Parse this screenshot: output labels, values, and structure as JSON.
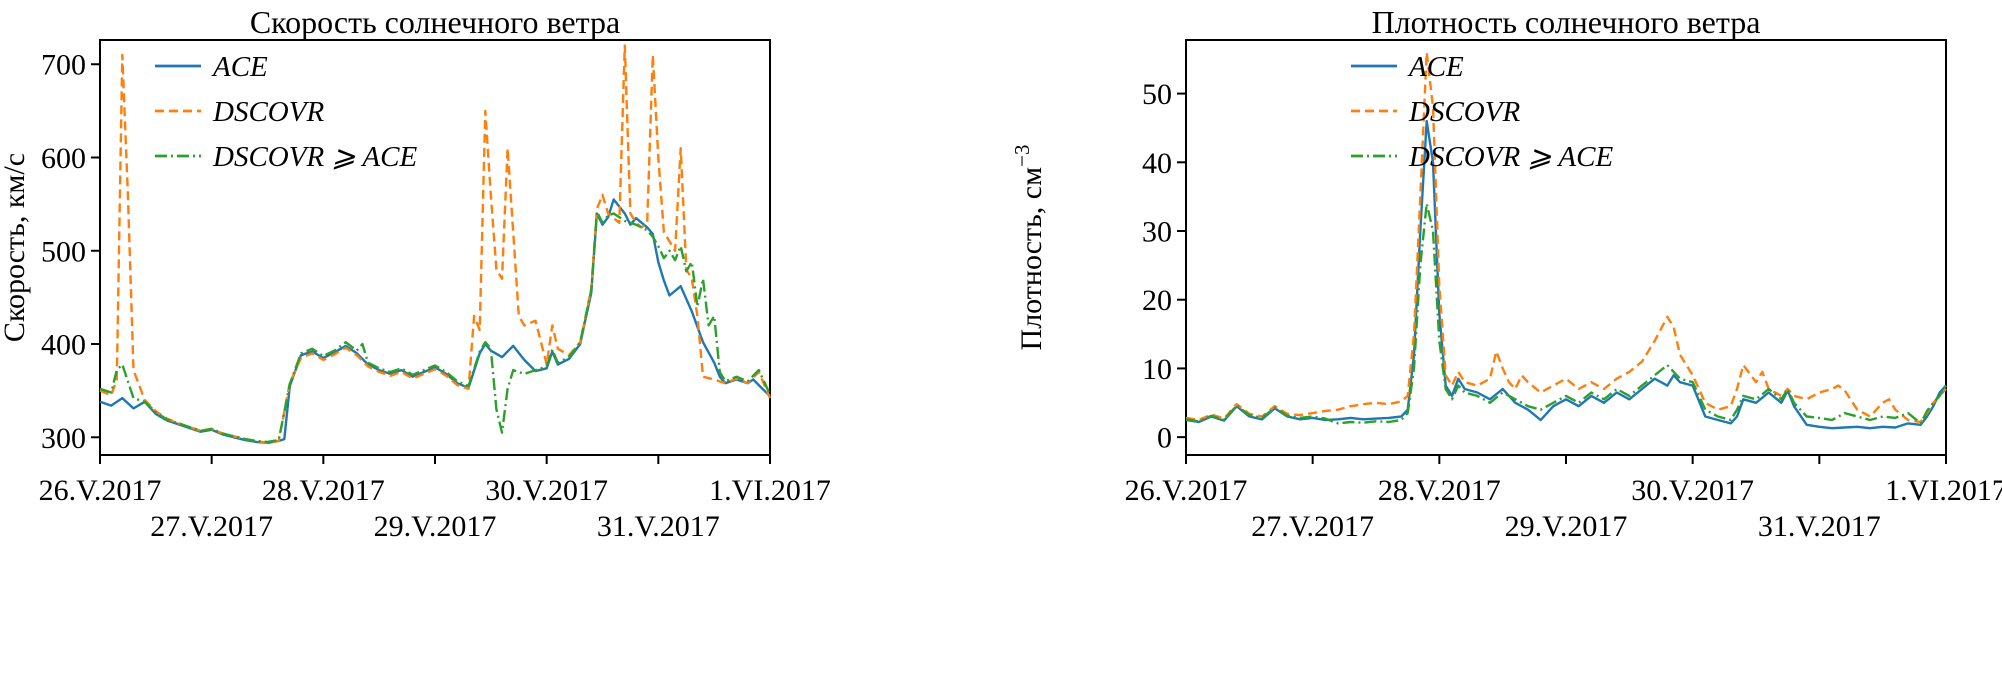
{
  "figure": {
    "background": "#ffffff"
  },
  "colors": {
    "ace": "#1f77b4",
    "dscovr": "#ff7f0e",
    "dscovr_ace": "#2ca02c",
    "axis": "#000000"
  },
  "chart_data": [
    {
      "type": "line",
      "title": "Скорость солнечного ветра",
      "ylabel": "Скорость, км/с",
      "ylabel_sup": "",
      "xlabel": "",
      "grid": false,
      "legend_position": "top-left",
      "xlim": [
        0,
        6
      ],
      "ylim": [
        281,
        726
      ],
      "yticks": [
        300,
        400,
        500,
        600,
        700
      ],
      "xtick_days": [
        0,
        1,
        2,
        3,
        4,
        5,
        6
      ],
      "xtick_labels": [
        "26.V.2017",
        "27.V.2017",
        "28.V.2017",
        "29.V.2017",
        "30.V.2017",
        "31.V.2017",
        "1.VI.2017"
      ],
      "xtick_rows": [
        0,
        1,
        0,
        1,
        0,
        1,
        0
      ],
      "series": [
        {
          "name": "ACE",
          "color": "#1f77b4",
          "style": "solid",
          "x": [
            0,
            0.1,
            0.2,
            0.3,
            0.4,
            0.5,
            0.6,
            0.7,
            0.8,
            0.9,
            1.0,
            1.1,
            1.2,
            1.3,
            1.4,
            1.5,
            1.6,
            1.65,
            1.7,
            1.8,
            1.9,
            2.0,
            2.1,
            2.2,
            2.3,
            2.4,
            2.5,
            2.6,
            2.7,
            2.8,
            2.9,
            3.0,
            3.1,
            3.2,
            3.3,
            3.4,
            3.45,
            3.5,
            3.6,
            3.7,
            3.8,
            3.9,
            4.0,
            4.05,
            4.1,
            4.2,
            4.3,
            4.35,
            4.4,
            4.45,
            4.5,
            4.55,
            4.6,
            4.7,
            4.75,
            4.8,
            4.9,
            4.95,
            5.0,
            5.05,
            5.1,
            5.2,
            5.3,
            5.4,
            5.5,
            5.55,
            5.6,
            5.7,
            5.8,
            5.85,
            5.9,
            6.0
          ],
          "y": [
            338,
            334,
            342,
            331,
            338,
            325,
            318,
            314,
            310,
            306,
            308,
            303,
            300,
            297,
            295,
            294,
            296,
            298,
            355,
            388,
            392,
            385,
            391,
            398,
            390,
            378,
            372,
            368,
            372,
            365,
            370,
            375,
            368,
            358,
            353,
            390,
            400,
            393,
            386,
            398,
            383,
            371,
            374,
            392,
            378,
            384,
            400,
            428,
            455,
            540,
            528,
            536,
            555,
            540,
            528,
            535,
            525,
            518,
            488,
            468,
            452,
            462,
            435,
            402,
            380,
            365,
            358,
            362,
            358,
            362,
            356,
            344
          ]
        },
        {
          "name": "DSCOVR",
          "color": "#ff7f0e",
          "style": "dashed",
          "x": [
            0,
            0.1,
            0.15,
            0.2,
            0.25,
            0.3,
            0.4,
            0.5,
            0.6,
            0.7,
            0.8,
            0.9,
            1.0,
            1.1,
            1.2,
            1.3,
            1.4,
            1.5,
            1.6,
            1.7,
            1.8,
            1.9,
            2.0,
            2.1,
            2.2,
            2.3,
            2.4,
            2.5,
            2.6,
            2.7,
            2.8,
            2.9,
            3.0,
            3.1,
            3.2,
            3.3,
            3.35,
            3.4,
            3.45,
            3.5,
            3.55,
            3.6,
            3.65,
            3.7,
            3.75,
            3.8,
            3.9,
            4.0,
            4.05,
            4.1,
            4.2,
            4.3,
            4.35,
            4.4,
            4.45,
            4.5,
            4.55,
            4.6,
            4.65,
            4.7,
            4.75,
            4.8,
            4.85,
            4.9,
            4.95,
            5.0,
            5.05,
            5.1,
            5.15,
            5.2,
            5.25,
            5.3,
            5.35,
            5.4,
            5.5,
            5.6,
            5.7,
            5.8,
            5.9,
            6.0
          ],
          "y": [
            350,
            345,
            362,
            710,
            560,
            372,
            340,
            328,
            320,
            315,
            311,
            307,
            309,
            304,
            301,
            298,
            296,
            294,
            296,
            358,
            385,
            390,
            383,
            389,
            396,
            388,
            376,
            370,
            366,
            370,
            363,
            368,
            373,
            366,
            356,
            352,
            430,
            415,
            650,
            560,
            480,
            470,
            610,
            520,
            430,
            420,
            425,
            378,
            420,
            395,
            388,
            402,
            430,
            460,
            545,
            560,
            540,
            535,
            530,
            720,
            540,
            530,
            525,
            530,
            710,
            600,
            520,
            510,
            500,
            610,
            480,
            470,
            430,
            365,
            362,
            358,
            363,
            358,
            370,
            342
          ]
        },
        {
          "name": "DSCOVR ⩾ ACE",
          "color": "#2ca02c",
          "style": "dashdot",
          "x": [
            0,
            0.1,
            0.15,
            0.2,
            0.25,
            0.3,
            0.4,
            0.5,
            0.6,
            0.7,
            0.8,
            0.9,
            1.0,
            1.1,
            1.2,
            1.3,
            1.4,
            1.5,
            1.6,
            1.7,
            1.8,
            1.9,
            2.0,
            2.1,
            2.2,
            2.3,
            2.35,
            2.4,
            2.5,
            2.6,
            2.7,
            2.8,
            2.9,
            3.0,
            3.1,
            3.2,
            3.3,
            3.4,
            3.45,
            3.5,
            3.55,
            3.6,
            3.65,
            3.7,
            3.8,
            3.9,
            4.0,
            4.05,
            4.1,
            4.2,
            4.3,
            4.35,
            4.4,
            4.45,
            4.5,
            4.55,
            4.6,
            4.7,
            4.8,
            4.9,
            4.95,
            5.0,
            5.05,
            5.1,
            5.15,
            5.2,
            5.25,
            5.3,
            5.35,
            5.4,
            5.45,
            5.5,
            5.55,
            5.6,
            5.7,
            5.8,
            5.9,
            6.0
          ],
          "y": [
            352,
            348,
            372,
            378,
            360,
            342,
            338,
            327,
            319,
            315,
            311,
            307,
            309,
            304,
            301,
            298,
            296,
            295,
            297,
            357,
            390,
            395,
            387,
            393,
            402,
            393,
            400,
            380,
            374,
            370,
            374,
            367,
            372,
            377,
            370,
            360,
            355,
            392,
            402,
            395,
            330,
            305,
            352,
            372,
            368,
            372,
            376,
            394,
            380,
            386,
            402,
            430,
            458,
            542,
            530,
            538,
            540,
            532,
            528,
            522,
            515,
            505,
            492,
            500,
            490,
            505,
            478,
            488,
            440,
            470,
            420,
            430,
            370,
            360,
            365,
            360,
            372,
            346
          ]
        }
      ]
    },
    {
      "type": "line",
      "title": "Плотность солнечного ветра",
      "ylabel": "Плотность, см",
      "ylabel_sup": "−3",
      "xlabel": "",
      "grid": false,
      "legend_position": "top-left",
      "xlim": [
        0,
        6
      ],
      "ylim": [
        -2.6,
        57.8
      ],
      "yticks": [
        0,
        10,
        20,
        30,
        40,
        50
      ],
      "xtick_days": [
        0,
        1,
        2,
        3,
        4,
        5,
        6
      ],
      "xtick_labels": [
        "26.V.2017",
        "27.V.2017",
        "28.V.2017",
        "29.V.2017",
        "30.V.2017",
        "31.V.2017",
        "1.VI.2017"
      ],
      "xtick_rows": [
        0,
        1,
        0,
        1,
        0,
        1,
        0
      ],
      "series": [
        {
          "name": "ACE",
          "color": "#1f77b4",
          "style": "solid",
          "x": [
            0,
            0.1,
            0.2,
            0.3,
            0.4,
            0.5,
            0.6,
            0.7,
            0.8,
            0.9,
            1.0,
            1.1,
            1.2,
            1.3,
            1.4,
            1.5,
            1.6,
            1.7,
            1.75,
            1.8,
            1.85,
            1.9,
            1.95,
            2.0,
            2.05,
            2.1,
            2.15,
            2.2,
            2.3,
            2.4,
            2.5,
            2.6,
            2.7,
            2.8,
            2.9,
            3.0,
            3.1,
            3.2,
            3.3,
            3.4,
            3.5,
            3.6,
            3.7,
            3.8,
            3.85,
            3.9,
            4.0,
            4.1,
            4.2,
            4.3,
            4.35,
            4.4,
            4.5,
            4.6,
            4.7,
            4.75,
            4.8,
            4.9,
            5.0,
            5.1,
            5.2,
            5.3,
            5.4,
            5.5,
            5.6,
            5.7,
            5.8,
            5.85,
            5.9,
            5.95,
            6.0
          ],
          "y": [
            2.5,
            2.2,
            3.0,
            2.4,
            4.5,
            3.0,
            2.6,
            4.2,
            3.0,
            2.6,
            2.8,
            2.5,
            2.6,
            2.8,
            2.6,
            2.7,
            2.8,
            3.0,
            4.0,
            12,
            30,
            46,
            40,
            18,
            7.5,
            6.0,
            8.5,
            7.0,
            6.5,
            5.5,
            7.0,
            5.0,
            4.0,
            2.5,
            4.5,
            5.5,
            4.5,
            6.0,
            5.0,
            6.5,
            5.5,
            7.0,
            8.5,
            7.5,
            9.0,
            8.0,
            7.5,
            3.0,
            2.5,
            2.0,
            3.0,
            5.5,
            5.0,
            6.5,
            5.0,
            6.8,
            4.5,
            1.8,
            1.5,
            1.3,
            1.4,
            1.5,
            1.3,
            1.5,
            1.4,
            2.0,
            1.8,
            3.0,
            4.5,
            6.5,
            7.5
          ]
        },
        {
          "name": "DSCOVR",
          "color": "#ff7f0e",
          "style": "dashed",
          "x": [
            0,
            0.1,
            0.2,
            0.3,
            0.4,
            0.5,
            0.6,
            0.7,
            0.8,
            0.9,
            1.0,
            1.1,
            1.2,
            1.3,
            1.4,
            1.5,
            1.6,
            1.7,
            1.75,
            1.8,
            1.85,
            1.9,
            1.95,
            2.0,
            2.05,
            2.1,
            2.15,
            2.2,
            2.3,
            2.4,
            2.45,
            2.5,
            2.55,
            2.6,
            2.65,
            2.7,
            2.8,
            2.9,
            3.0,
            3.1,
            3.2,
            3.3,
            3.4,
            3.5,
            3.6,
            3.7,
            3.8,
            3.85,
            3.9,
            4.0,
            4.1,
            4.2,
            4.3,
            4.35,
            4.4,
            4.5,
            4.55,
            4.6,
            4.7,
            4.75,
            4.8,
            4.9,
            5.0,
            5.1,
            5.15,
            5.2,
            5.3,
            5.4,
            5.5,
            5.55,
            5.6,
            5.7,
            5.8,
            5.85,
            5.9,
            5.95,
            6.0
          ],
          "y": [
            2.8,
            2.5,
            3.3,
            2.7,
            4.8,
            3.4,
            3.0,
            4.5,
            3.4,
            3.2,
            3.5,
            3.8,
            4.0,
            4.5,
            4.8,
            5.0,
            4.8,
            5.2,
            6.0,
            15,
            35,
            56,
            48,
            22,
            9,
            7.5,
            9.5,
            8.0,
            7.5,
            8.5,
            12.5,
            10,
            8,
            7,
            9,
            8,
            6.5,
            7.5,
            8.5,
            7.0,
            8.0,
            7.0,
            8.5,
            9.5,
            11,
            14,
            17.5,
            16,
            12,
            9,
            5,
            4,
            4.5,
            7,
            10.5,
            8,
            9.5,
            7,
            6,
            7,
            6,
            5.5,
            6.5,
            7,
            7.5,
            6.8,
            4,
            3,
            5,
            5.5,
            4,
            2.5,
            2.2,
            3.5,
            5,
            6,
            7
          ]
        },
        {
          "name": "DSCOVR ⩾ ACE",
          "color": "#2ca02c",
          "style": "dashdot",
          "x": [
            0,
            0.1,
            0.2,
            0.3,
            0.4,
            0.5,
            0.6,
            0.7,
            0.8,
            0.9,
            1.0,
            1.1,
            1.2,
            1.3,
            1.4,
            1.5,
            1.6,
            1.7,
            1.75,
            1.8,
            1.85,
            1.9,
            1.95,
            2.0,
            2.05,
            2.1,
            2.15,
            2.2,
            2.3,
            2.4,
            2.5,
            2.6,
            2.7,
            2.8,
            2.9,
            3.0,
            3.1,
            3.2,
            3.3,
            3.4,
            3.5,
            3.6,
            3.7,
            3.8,
            3.85,
            3.9,
            4.0,
            4.1,
            4.2,
            4.3,
            4.35,
            4.4,
            4.5,
            4.6,
            4.7,
            4.75,
            4.8,
            4.9,
            5.0,
            5.1,
            5.2,
            5.3,
            5.4,
            5.5,
            5.6,
            5.7,
            5.8,
            5.85,
            5.9,
            5.95,
            6.0
          ],
          "y": [
            2.6,
            2.3,
            3.1,
            2.5,
            4.6,
            3.2,
            2.8,
            4.3,
            3.1,
            2.8,
            3.0,
            2.7,
            2.0,
            2.2,
            2.1,
            2.3,
            2.2,
            2.5,
            3.5,
            10,
            25,
            34,
            30,
            14,
            7,
            5.5,
            7.5,
            6.5,
            6.0,
            5.0,
            6.5,
            5.5,
            4.5,
            4.0,
            5.0,
            6.0,
            5.0,
            6.5,
            5.5,
            7.0,
            6.0,
            7.5,
            9.0,
            10.5,
            9.5,
            8.5,
            8.0,
            4.0,
            3.0,
            2.5,
            4.0,
            6.0,
            5.5,
            7.0,
            5.5,
            7.0,
            5.0,
            3.0,
            2.8,
            2.5,
            3.5,
            3.0,
            2.5,
            3.0,
            2.8,
            3.5,
            2.0,
            3.8,
            5.0,
            6.0,
            7.5
          ]
        }
      ]
    }
  ]
}
